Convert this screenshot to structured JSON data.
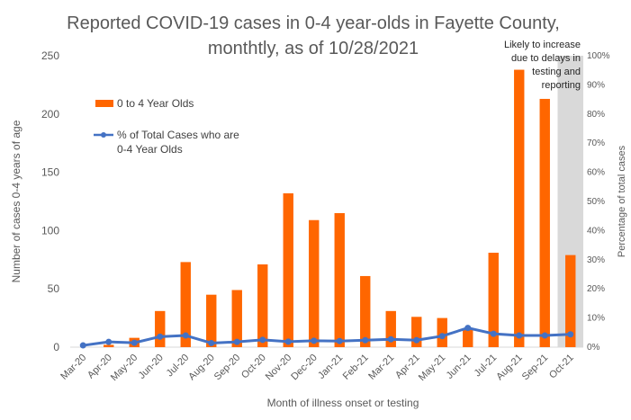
{
  "chart_data": {
    "type": "bar",
    "title_line1": "Reported COVID-19 cases in 0-4 year-olds in Fayette County,",
    "title_line2": "monthtly, as of 10/28/2021",
    "xlabel": "Month of illness onset or testing",
    "ylabel": "Number of cases 0-4 years of age",
    "y2label": "Percentage of total cases",
    "categories": [
      "Mar-20",
      "Apr-20",
      "May-20",
      "Jun-20",
      "Jul-20",
      "Aug-20",
      "Sep-20",
      "Oct-20",
      "Nov-20",
      "Dec-20",
      "Jan-21",
      "Feb-21",
      "Mar-21",
      "Apr-21",
      "May-21",
      "Jun-21",
      "Jul-21",
      "Aug-21",
      "Sep-21",
      "Oct-21"
    ],
    "ylim": [
      0,
      250
    ],
    "yticks": [
      0,
      50,
      100,
      150,
      200,
      250
    ],
    "y2lim": [
      0,
      100
    ],
    "y2ticks": [
      "0%",
      "10%",
      "20%",
      "30%",
      "40%",
      "50%",
      "60%",
      "70%",
      "80%",
      "90%",
      "100%"
    ],
    "series": [
      {
        "name": "0 to 4 Year Olds",
        "type": "bar",
        "color": "#FF6600",
        "values": [
          0,
          2,
          8,
          31,
          73,
          45,
          49,
          71,
          132,
          109,
          115,
          61,
          31,
          26,
          25,
          16,
          81,
          238,
          213,
          79
        ]
      },
      {
        "name": "% of Total Cases who are\n0-4 Year Olds",
        "legend_line1": "% of Total Cases who are",
        "legend_line2": "0-4 Year Olds",
        "type": "line",
        "axis": "secondary",
        "color": "#4472C4",
        "values": [
          0.6,
          1.8,
          1.5,
          3.6,
          4.0,
          1.4,
          1.8,
          2.5,
          1.9,
          2.2,
          2.1,
          2.4,
          2.7,
          2.4,
          3.8,
          6.6,
          4.6,
          4.0,
          4.0,
          4.4
        ]
      }
    ],
    "shaded_region": {
      "category": "Oct-21",
      "color": "#D9D9D9"
    },
    "annotation": [
      "Likely to increase",
      "due to delays in",
      "testing and",
      "reporting"
    ],
    "grid": false,
    "legend_position": "upper-left"
  }
}
